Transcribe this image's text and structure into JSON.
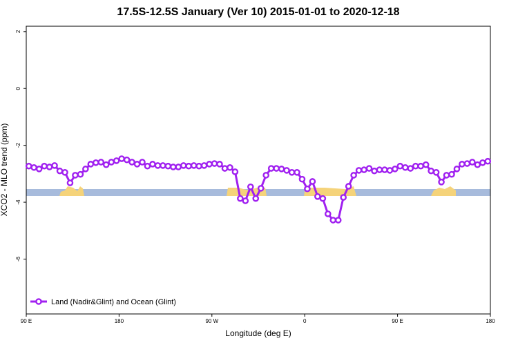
{
  "chart_data": {
    "type": "line",
    "title": "17.5S-12.5S January (Ver 10)   2015-01-01 to 2020-12-18",
    "x_label": "Longitude (deg E)",
    "y_label": "XCO2 - MLO trend (ppm)",
    "xlim": [
      90,
      540
    ],
    "ylim": [
      -7.93,
      2.19
    ],
    "xticks": [
      {
        "value": 90,
        "label": "90 E"
      },
      180,
      {
        "value": 270,
        "label": "90 W"
      },
      {
        "value": 360,
        "label": "0"
      },
      {
        "value": 450,
        "label": "90 E"
      },
      {
        "value": 540,
        "label": "180"
      }
    ],
    "yticks": [
      2,
      0,
      -2,
      -4,
      -6
    ],
    "legend": "bottom-left",
    "x": [
      92.5,
      97.5,
      102.5,
      107.5,
      112.5,
      117.5,
      122.5,
      127.5,
      132.5,
      137.5,
      142.5,
      147.5,
      152.5,
      157.5,
      162.5,
      167.5,
      172.5,
      177.5,
      182.5,
      187.5,
      192.5,
      197.5,
      202.5,
      207.5,
      212.5,
      217.5,
      222.5,
      227.5,
      232.5,
      237.5,
      242.5,
      247.5,
      252.5,
      257.5,
      262.5,
      267.5,
      272.5,
      277.5,
      282.5,
      287.5,
      292.5,
      297.5,
      302.5,
      307.5,
      312.5,
      317.5,
      322.5,
      327.5,
      332.5,
      337.5,
      342.5,
      347.5,
      352.5,
      357.5,
      362.5,
      367.5,
      372.5,
      377.5,
      382.5,
      387.5,
      392.5,
      397.5,
      402.5,
      407.5,
      412.5,
      417.5,
      422.5,
      427.5,
      432.5,
      437.5,
      442.5,
      447.5,
      452.5,
      457.5,
      462.5,
      467.5,
      472.5,
      477.5,
      482.5,
      487.5,
      492.5,
      497.5,
      502.5,
      507.5,
      512.5,
      517.5,
      522.5,
      527.5,
      532.5,
      537.5
    ],
    "series": [
      {
        "name": "Land (Nadir&Glint) and Ocean (Glint)",
        "color": "#a020f0",
        "values": [
          -2.73,
          -2.78,
          -2.83,
          -2.73,
          -2.76,
          -2.71,
          -2.9,
          -2.95,
          -3.32,
          -3.05,
          -3.02,
          -2.83,
          -2.66,
          -2.61,
          -2.59,
          -2.68,
          -2.59,
          -2.54,
          -2.47,
          -2.51,
          -2.59,
          -2.66,
          -2.59,
          -2.73,
          -2.66,
          -2.71,
          -2.71,
          -2.73,
          -2.76,
          -2.76,
          -2.71,
          -2.73,
          -2.71,
          -2.73,
          -2.71,
          -2.66,
          -2.64,
          -2.66,
          -2.81,
          -2.78,
          -2.93,
          -3.87,
          -3.95,
          -3.46,
          -3.87,
          -3.51,
          -3.05,
          -2.81,
          -2.81,
          -2.83,
          -2.88,
          -2.95,
          -2.95,
          -3.19,
          -3.53,
          -3.27,
          -3.8,
          -3.87,
          -4.41,
          -4.63,
          -4.63,
          -3.83,
          -3.44,
          -3.05,
          -2.88,
          -2.86,
          -2.81,
          -2.9,
          -2.86,
          -2.86,
          -2.88,
          -2.83,
          -2.73,
          -2.78,
          -2.81,
          -2.73,
          -2.73,
          -2.68,
          -2.9,
          -2.95,
          -3.29,
          -3.05,
          -3.02,
          -2.83,
          -2.66,
          -2.64,
          -2.59,
          -2.68,
          -2.61,
          -2.56
        ]
      }
    ]
  }
}
